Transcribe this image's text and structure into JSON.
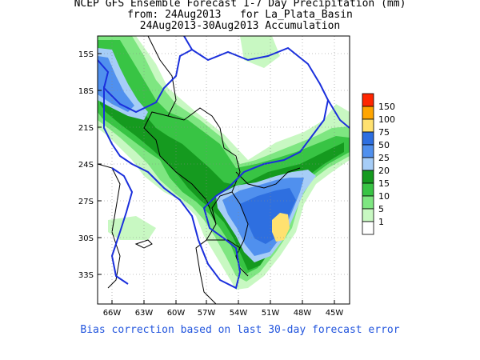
{
  "title": {
    "line1": "NCEP GFS Ensemble Forecast 1-7 Day Precipitation (mm)",
    "line2": "from: 24Aug2013   for La_Plata_Basin",
    "line3": "24Aug2013-30Aug2013 Accumulation"
  },
  "footer": "Bias correction based on last 30-day forecast error",
  "map": {
    "lat_labels": [
      "15S",
      "18S",
      "21S",
      "24S",
      "27S",
      "30S",
      "33S"
    ],
    "lon_labels": [
      "66W",
      "63W",
      "60W",
      "57W",
      "54W",
      "51W",
      "48W",
      "45W"
    ]
  },
  "legend": {
    "bins": [
      {
        "label": "150",
        "color": "#ff2600"
      },
      {
        "label": "100",
        "color": "#ffa500"
      },
      {
        "label": "75",
        "color": "#ffe170"
      },
      {
        "label": "50",
        "color": "#2e6fe0"
      },
      {
        "label": "25",
        "color": "#5090ee"
      },
      {
        "label": "20",
        "color": "#a6cdf7"
      },
      {
        "label": "15",
        "color": "#159a1f"
      },
      {
        "label": "10",
        "color": "#38c444"
      },
      {
        "label": "5",
        "color": "#7ee681"
      },
      {
        "label": "1",
        "color": "#c8f8c2"
      },
      {
        "label": "",
        "color": "#ffffff"
      }
    ]
  }
}
